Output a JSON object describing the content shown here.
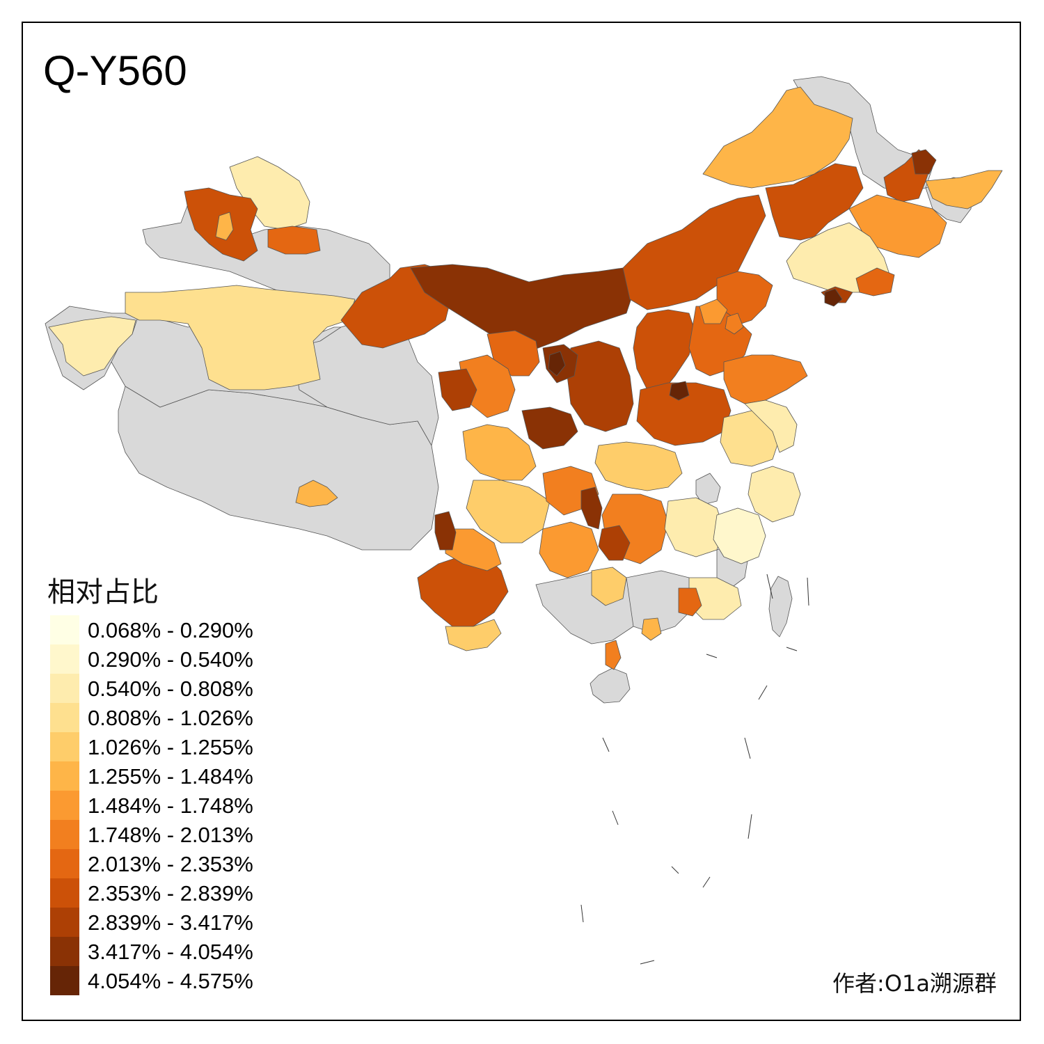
{
  "title": "Q-Y560",
  "legend": {
    "title": "相对占比",
    "classes": [
      {
        "label": "0.068% - 0.290%",
        "color": "#ffffe5"
      },
      {
        "label": "0.290% - 0.540%",
        "color": "#fff7cc"
      },
      {
        "label": "0.540% - 0.808%",
        "color": "#feecae"
      },
      {
        "label": "0.808% - 1.026%",
        "color": "#fee08f"
      },
      {
        "label": "1.026% - 1.255%",
        "color": "#fecd6a"
      },
      {
        "label": "1.255% - 1.484%",
        "color": "#feb548"
      },
      {
        "label": "1.484% - 1.748%",
        "color": "#fb9a31"
      },
      {
        "label": "1.748% - 2.013%",
        "color": "#f27f1f"
      },
      {
        "label": "2.013% - 2.353%",
        "color": "#e46712"
      },
      {
        "label": "2.353% - 2.839%",
        "color": "#cc5108"
      },
      {
        "label": "2.839% - 3.417%",
        "color": "#ad4005"
      },
      {
        "label": "3.417% - 4.054%",
        "color": "#8a3205"
      },
      {
        "label": "4.054% - 4.575%",
        "color": "#662506"
      }
    ]
  },
  "credit": "作者:O1a溯源群",
  "colors": {
    "no_data": "#d9d9d9",
    "border": "#555555",
    "frame": "#000000"
  }
}
